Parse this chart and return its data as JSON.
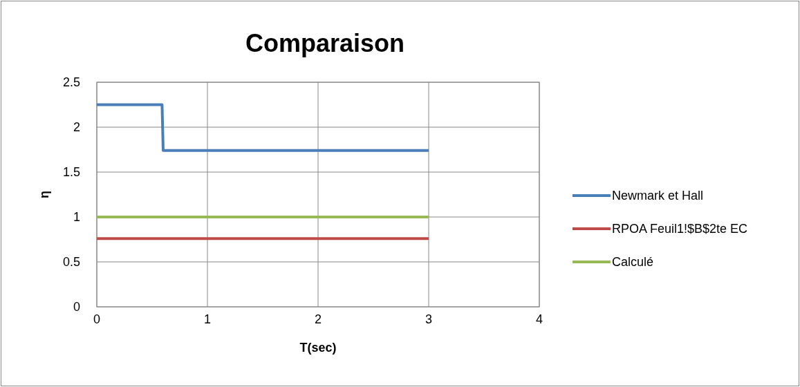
{
  "chart_data": {
    "type": "line",
    "title": "Comparaison",
    "xlabel": "T(sec)",
    "ylabel": "η",
    "xlim": [
      0,
      4
    ],
    "xticks": [
      0,
      1,
      2,
      3,
      4
    ],
    "ylim": [
      0,
      2.5
    ],
    "yticks": [
      0,
      0.5,
      1,
      1.5,
      2,
      2.5
    ],
    "grid": true,
    "legend": "right",
    "marker": "none",
    "line_style": "solid",
    "series": [
      {
        "name": "Newmark et Hall",
        "color": "#4a7ebb",
        "x": [
          0,
          0.59,
          0.6,
          3
        ],
        "values": [
          2.25,
          2.25,
          1.74,
          1.74
        ]
      },
      {
        "name": "RPOA Feuil1!$B$2te EC",
        "color": "#be4b48",
        "x": [
          0,
          3
        ],
        "values": [
          0.76,
          0.76
        ]
      },
      {
        "name": "Calculé",
        "color": "#98b954",
        "x": [
          0,
          3
        ],
        "values": [
          1,
          1
        ]
      }
    ]
  }
}
